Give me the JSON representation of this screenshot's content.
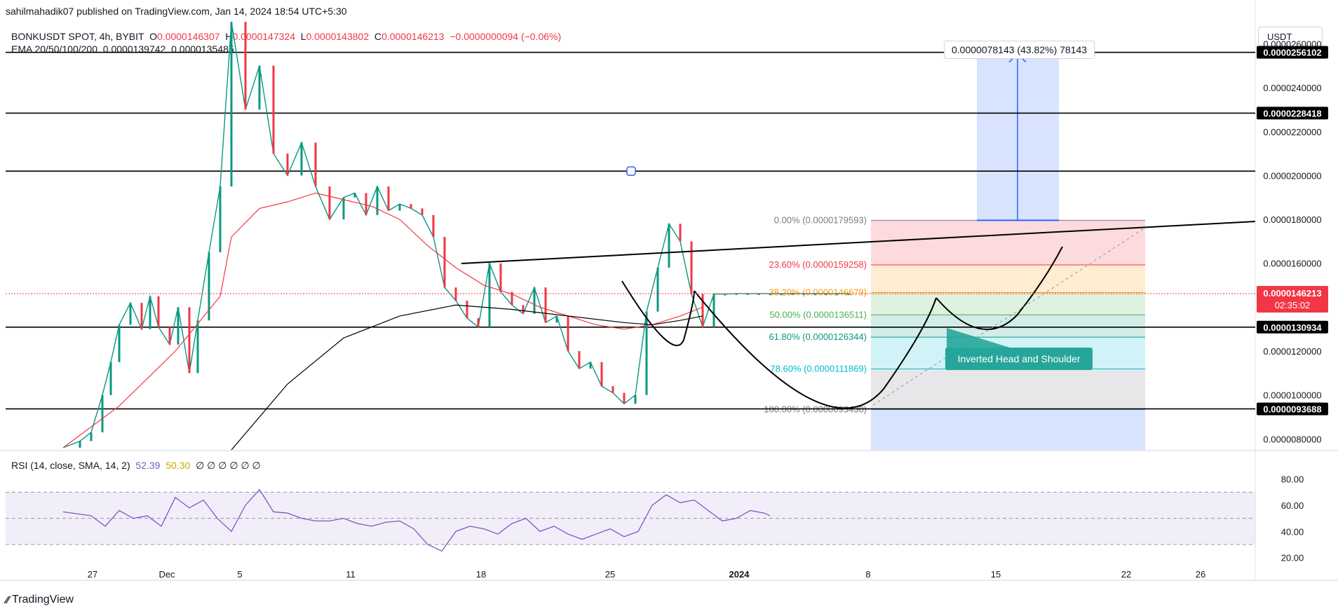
{
  "publisher": "sahilmahadik07 published on TradingView.com, Jan 14, 2024 18:54 UTC+5:30",
  "legend": {
    "symbol": "BONKUSDT SPOT, 4h, BYBIT",
    "open_label": "O",
    "open": "0.0000146307",
    "high_label": "H",
    "high": "0.0000147324",
    "low_label": "L",
    "low": "0.0000143802",
    "close_label": "C",
    "close": "0.0000146213",
    "change": "−0.0000000094 (−0.06%)",
    "ema_label": "EMA 20/50/100/200",
    "ema1": "0.0000139742",
    "ema2": "0.0000135485"
  },
  "currency_button": "USDT",
  "measure_label": "0.0000078143 (43.82%) 78143",
  "annotation_label": "Inverted Head and Shoulder",
  "current_price": {
    "value": "0.0000146213",
    "countdown": "02:35:02"
  },
  "colors": {
    "up": "#089981",
    "down": "#f23645",
    "ema_short": "#f23645",
    "ema_long": "#000000",
    "rsi": "#7e57c2",
    "rsi_ma": "#f7d44f",
    "measure": "#2962ff"
  },
  "chart_data": {
    "type": "line",
    "title": "",
    "price_axis": {
      "ticks": [
        "0.0000260000",
        "0.0000240000",
        "0.0000220000",
        "0.0000200000",
        "0.0000180000",
        "0.0000160000",
        "0.0000120000",
        "0.0000100000",
        "0.0000080000"
      ],
      "min": 7.5e-06,
      "max": 2.71e-05
    },
    "time_axis": {
      "labels": [
        "27",
        "Dec",
        "5",
        "11",
        "18",
        "25",
        "2024",
        "8",
        "15",
        "22",
        "26"
      ]
    },
    "levels": [
      {
        "value": 2.56102e-05,
        "label": "0.0000256102"
      },
      {
        "value": 2.28418e-05,
        "label": "0.0000228418"
      },
      {
        "value": 2.02e-05,
        "label": ""
      },
      {
        "value": 1.30934e-05,
        "label": "0.0000130934"
      },
      {
        "value": 9.3688e-06,
        "label": "0.0000093688"
      }
    ],
    "fibonacci": [
      {
        "ratio": "0.00%",
        "price": "0.0000179593",
        "v": 1.79593e-05,
        "color": "#787b86"
      },
      {
        "ratio": "23.60%",
        "price": "0.0000159258",
        "v": 1.59258e-05,
        "color": "#f23645"
      },
      {
        "ratio": "38.20%",
        "price": "0.0000146679",
        "v": 1.46679e-05,
        "color": "#ff9800"
      },
      {
        "ratio": "50.00%",
        "price": "0.0000136511",
        "v": 1.36511e-05,
        "color": "#4caf50"
      },
      {
        "ratio": "61.80%",
        "price": "0.0000126344",
        "v": 1.26344e-05,
        "color": "#089981"
      },
      {
        "ratio": "78.60%",
        "price": "0.0000111869",
        "v": 1.11869e-05,
        "color": "#00bcd4"
      },
      {
        "ratio": "100.00%",
        "price": "0.0000093430",
        "v": 9.343e-06,
        "color": "#787b86"
      }
    ],
    "price_series": [
      {
        "name": "",
        "x": [
          0,
          6,
          10,
          14,
          17,
          20,
          24,
          28,
          31,
          34,
          38,
          41,
          45,
          48,
          52,
          56,
          60,
          65,
          70,
          75,
          80,
          85,
          90,
          95,
          100,
          104,
          108,
          112,
          116,
          120,
          124,
          128,
          132,
          136,
          140,
          144,
          148,
          152,
          156,
          160,
          164,
          168,
          172,
          176,
          180,
          184,
          188,
          192,
          196,
          200,
          204,
          208,
          212,
          216,
          220,
          224,
          228,
          232,
          236,
          240,
          244,
          248,
          252,
          256,
          260,
          264,
          268,
          272,
          276,
          280
        ],
        "values": [
          7.6,
          7.9,
          8.3,
          10.0,
          11.5,
          13.2,
          14.2,
          13.0,
          14.5,
          13.1,
          12.3,
          14.0,
          11.0,
          13.4,
          16.5,
          19.5,
          27.0,
          23.0,
          25.0,
          21.0,
          20.0,
          21.5,
          19.5,
          18.0,
          19.0,
          19.2,
          18.2,
          19.5,
          18.4,
          18.7,
          18.5,
          18.2,
          17.2,
          14.9,
          14.3,
          13.5,
          13.1,
          16.0,
          14.7,
          14.1,
          13.7,
          14.9,
          13.3,
          13.6,
          12.0,
          11.2,
          11.5,
          10.4,
          10.1,
          9.6,
          10.0,
          13.8,
          15.8,
          17.8,
          17.0,
          14.6,
          13.1,
          14.6,
          14.6,
          14.62,
          14.62,
          14.62,
          14.62,
          14.62,
          14.62,
          14.62,
          14.62,
          14.62,
          14.62,
          14.62
        ]
      }
    ],
    "ema_series": [
      {
        "name": "",
        "x": [
          0,
          20,
          40,
          56,
          60,
          70,
          80,
          90,
          100,
          110,
          120,
          130,
          140,
          150,
          160,
          170,
          180,
          190,
          200,
          210,
          220,
          228
        ],
        "values": [
          7.6,
          9.5,
          12.0,
          14.5,
          17.2,
          18.5,
          18.8,
          19.2,
          18.9,
          18.6,
          18.0,
          16.8,
          15.8,
          15.0,
          14.6,
          14.0,
          13.6,
          13.2,
          13.0,
          13.2,
          13.6,
          14.0
        ]
      },
      {
        "name": "",
        "x": [
          60,
          80,
          100,
          120,
          140,
          160,
          180,
          200,
          210,
          220,
          228
        ],
        "values": [
          7.5,
          10.5,
          12.6,
          13.6,
          14.1,
          13.9,
          13.6,
          13.3,
          13.2,
          13.4,
          13.6
        ]
      }
    ],
    "rsi": {
      "label": "RSI (14, close, SMA, 14, 2)",
      "value": "52.39",
      "ma": "50.30",
      "extra": "∅ ∅ ∅ ∅ ∅ ∅",
      "ticks": [
        "80.00",
        "60.00",
        "40.00",
        "20.00"
      ],
      "levels": [
        70,
        50,
        30
      ],
      "x": [
        0,
        10,
        15,
        20,
        25,
        30,
        35,
        40,
        45,
        50,
        55,
        60,
        65,
        70,
        75,
        80,
        85,
        90,
        95,
        100,
        105,
        110,
        115,
        120,
        125,
        130,
        135,
        140,
        145,
        150,
        155,
        160,
        165,
        170,
        175,
        180,
        185,
        190,
        195,
        200,
        205,
        210,
        215,
        220,
        225,
        230,
        235,
        240,
        245,
        250,
        252
      ],
      "values": [
        55,
        52,
        44,
        56,
        50,
        52,
        44,
        66,
        58,
        64,
        50,
        40,
        60,
        72,
        55,
        54,
        50,
        48,
        48,
        50,
        46,
        44,
        47,
        48,
        42,
        30,
        25,
        40,
        44,
        42,
        38,
        46,
        50,
        40,
        44,
        38,
        34,
        38,
        42,
        36,
        40,
        60,
        68,
        62,
        64,
        56,
        48,
        50,
        56,
        54,
        52
      ]
    }
  }
}
